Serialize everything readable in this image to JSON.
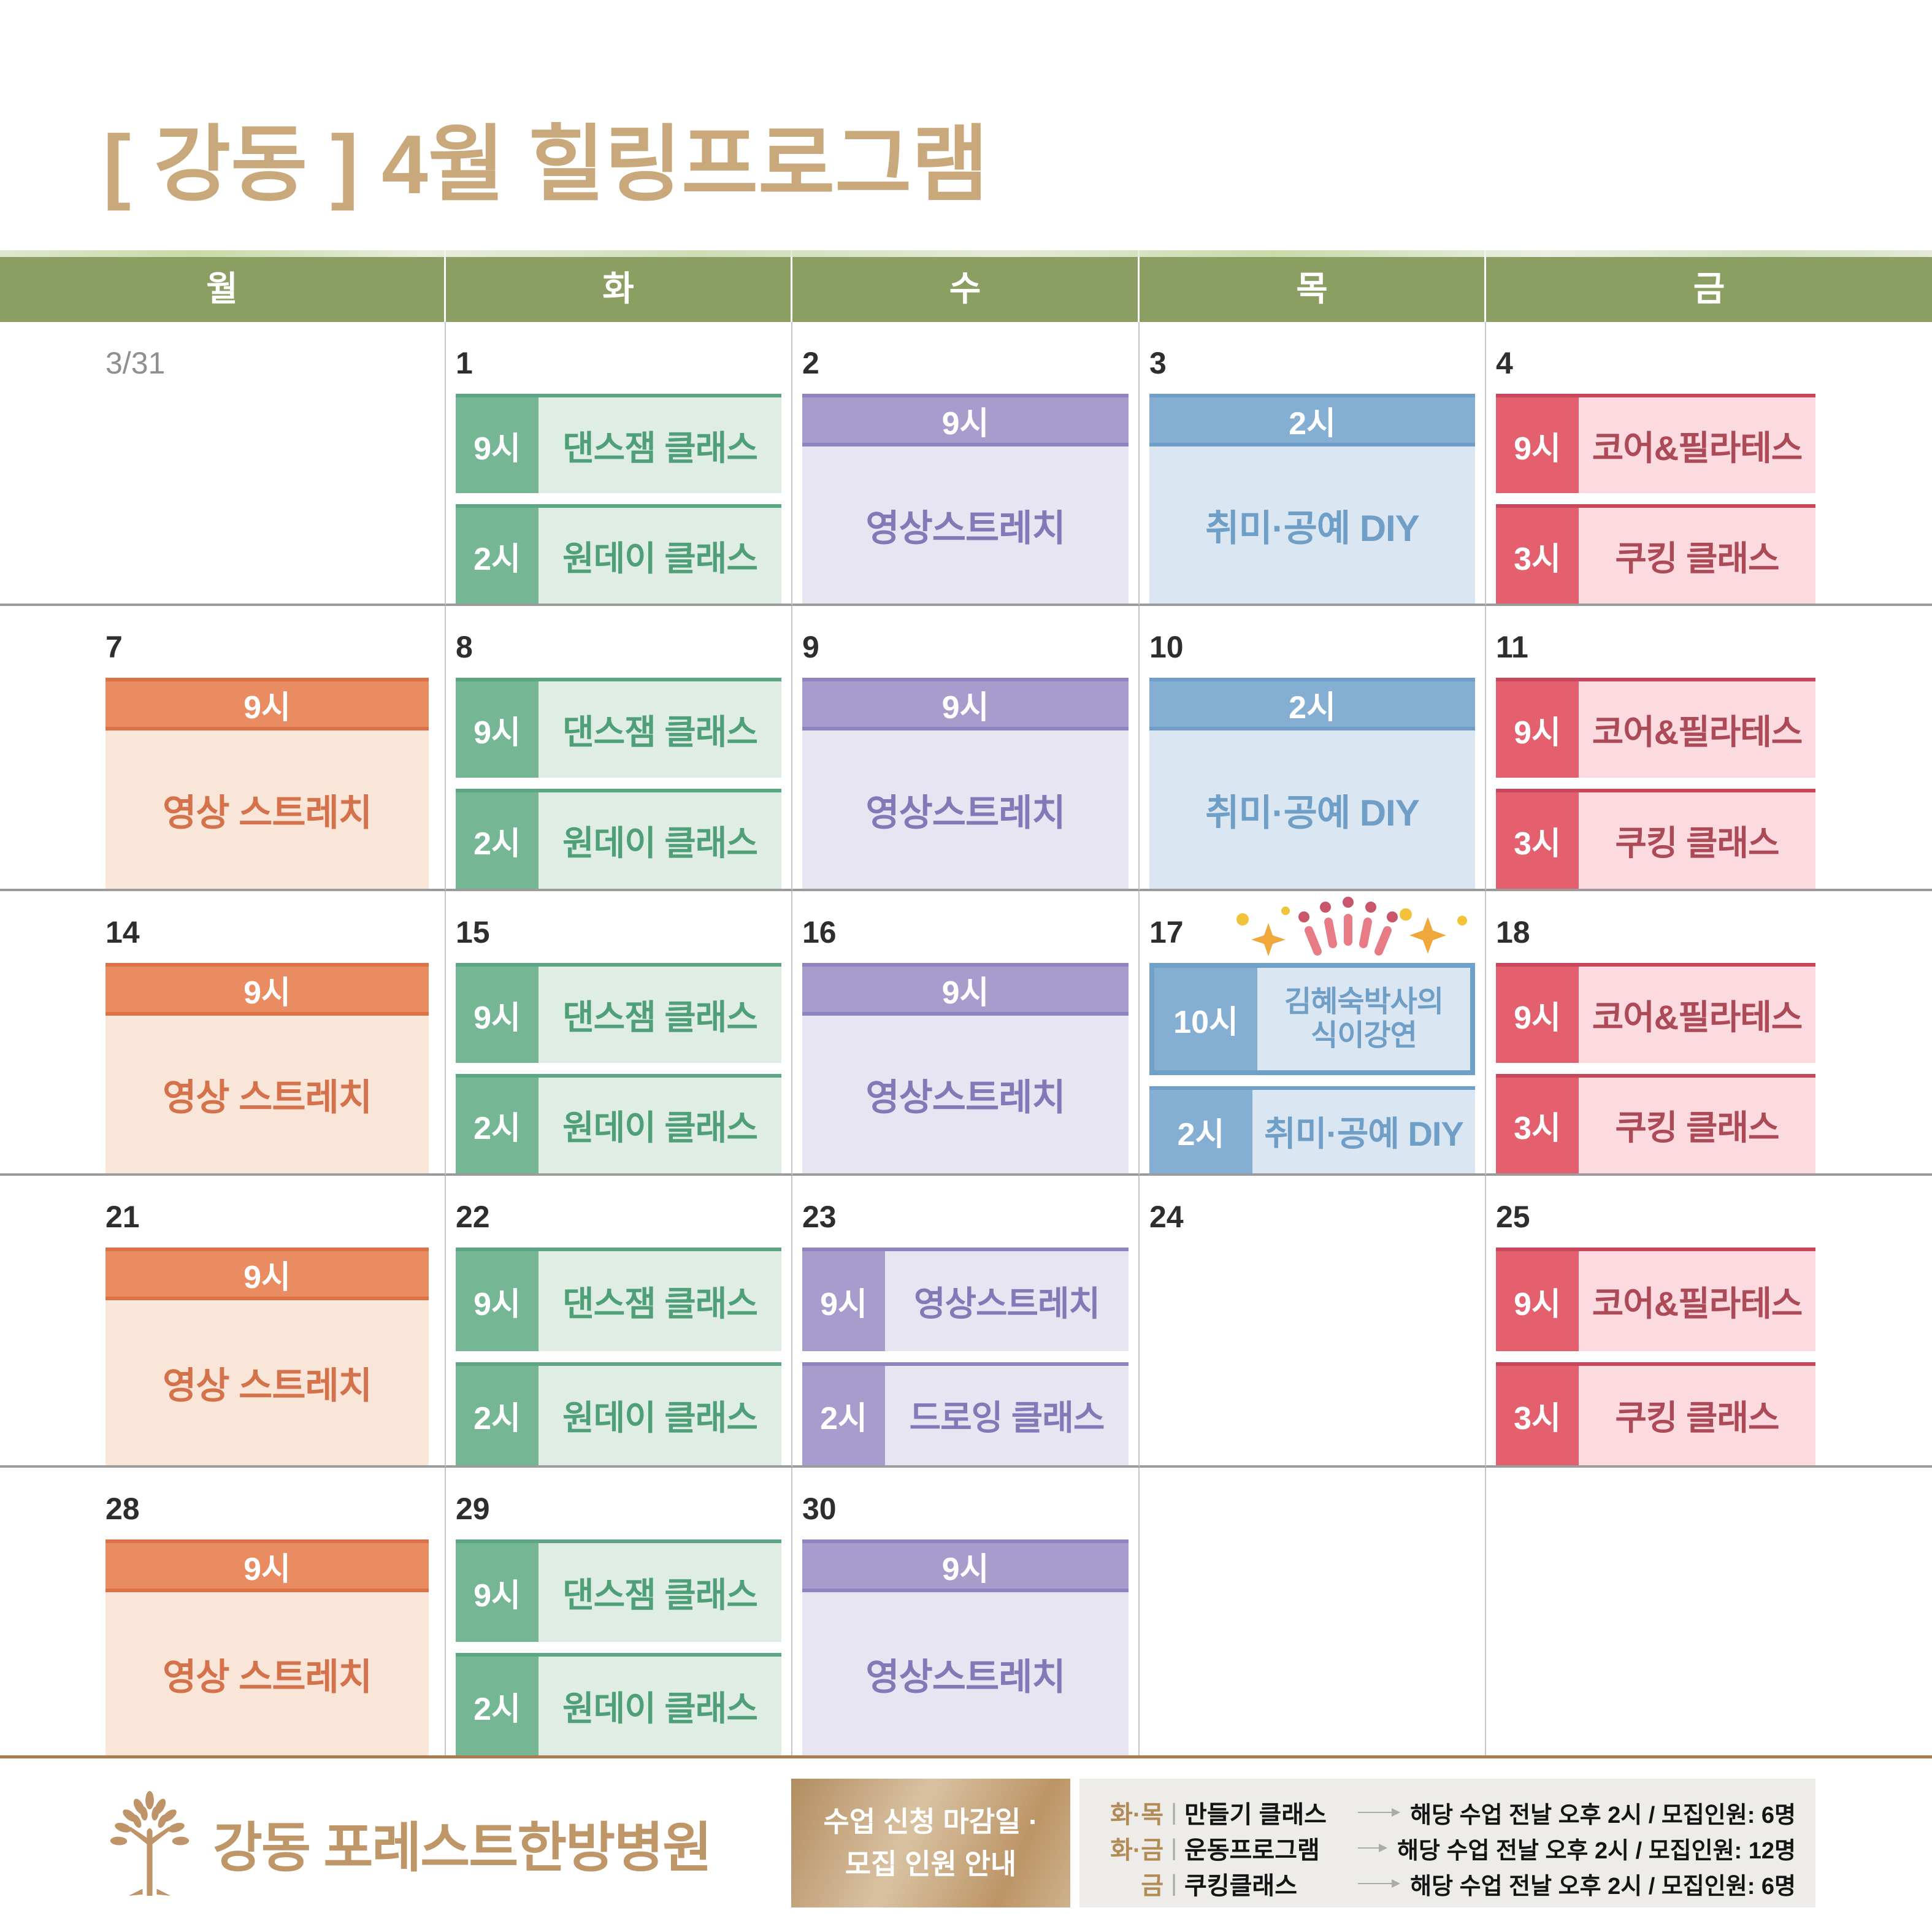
{
  "title": "[ 강동 ] 4월 힐링프로그램",
  "weekdays": [
    "월",
    "화",
    "수",
    "목",
    "금"
  ],
  "weeks": [
    [
      {
        "date": "3/31",
        "muted": true,
        "events": []
      },
      {
        "date": "1",
        "events": [
          {
            "type": "side",
            "theme": "green",
            "time": "9시",
            "label": "댄스잼 클래스"
          },
          {
            "type": "side",
            "theme": "green",
            "time": "2시",
            "label": "원데이 클래스"
          }
        ]
      },
      {
        "date": "2",
        "events": [
          {
            "type": "banner",
            "theme": "purple",
            "time": "9시",
            "label": "영상스트레치"
          }
        ]
      },
      {
        "date": "3",
        "events": [
          {
            "type": "banner",
            "theme": "blue",
            "time": "2시",
            "label": "취미·공예 DIY"
          }
        ]
      },
      {
        "date": "4",
        "events": [
          {
            "type": "side",
            "theme": "red",
            "time": "9시",
            "label": "코어&필라테스"
          },
          {
            "type": "side",
            "theme": "red",
            "time": "3시",
            "label": "쿠킹 클래스"
          }
        ]
      }
    ],
    [
      {
        "date": "7",
        "events": [
          {
            "type": "banner",
            "theme": "orange",
            "time": "9시",
            "label": "영상 스트레치"
          }
        ]
      },
      {
        "date": "8",
        "events": [
          {
            "type": "side",
            "theme": "green",
            "time": "9시",
            "label": "댄스잼 클래스"
          },
          {
            "type": "side",
            "theme": "green",
            "time": "2시",
            "label": "원데이 클래스"
          }
        ]
      },
      {
        "date": "9",
        "events": [
          {
            "type": "banner",
            "theme": "purple",
            "time": "9시",
            "label": "영상스트레치"
          }
        ]
      },
      {
        "date": "10",
        "events": [
          {
            "type": "banner",
            "theme": "blue",
            "time": "2시",
            "label": "취미·공예 DIY"
          }
        ]
      },
      {
        "date": "11",
        "events": [
          {
            "type": "side",
            "theme": "red",
            "time": "9시",
            "label": "코어&필라테스"
          },
          {
            "type": "side",
            "theme": "red",
            "time": "3시",
            "label": "쿠킹 클래스"
          }
        ]
      }
    ],
    [
      {
        "date": "14",
        "events": [
          {
            "type": "banner",
            "theme": "orange",
            "time": "9시",
            "label": "영상 스트레치"
          }
        ]
      },
      {
        "date": "15",
        "events": [
          {
            "type": "side",
            "theme": "green",
            "time": "9시",
            "label": "댄스잼 클래스"
          },
          {
            "type": "side",
            "theme": "green",
            "time": "2시",
            "label": "원데이 클래스"
          }
        ]
      },
      {
        "date": "16",
        "events": [
          {
            "type": "banner",
            "theme": "purple",
            "time": "9시",
            "label": "영상스트레치"
          }
        ]
      },
      {
        "date": "17",
        "decor": "sparkle",
        "events": [
          {
            "type": "side",
            "theme": "blue",
            "time": "10시",
            "label": "김혜숙박사의\n식이강연",
            "bordered": true
          },
          {
            "type": "side",
            "theme": "blue",
            "time": "2시",
            "label": "취미·공예 DIY"
          }
        ]
      },
      {
        "date": "18",
        "events": [
          {
            "type": "side",
            "theme": "red",
            "time": "9시",
            "label": "코어&필라테스"
          },
          {
            "type": "side",
            "theme": "red",
            "time": "3시",
            "label": "쿠킹 클래스"
          }
        ]
      }
    ],
    [
      {
        "date": "21",
        "events": [
          {
            "type": "banner",
            "theme": "orange",
            "time": "9시",
            "label": "영상 스트레치"
          }
        ]
      },
      {
        "date": "22",
        "events": [
          {
            "type": "side",
            "theme": "green",
            "time": "9시",
            "label": "댄스잼 클래스"
          },
          {
            "type": "side",
            "theme": "green",
            "time": "2시",
            "label": "원데이 클래스"
          }
        ]
      },
      {
        "date": "23",
        "events": [
          {
            "type": "side",
            "theme": "purple",
            "time": "9시",
            "label": "영상스트레치"
          },
          {
            "type": "side",
            "theme": "purple",
            "time": "2시",
            "label": "드로잉 클래스"
          }
        ]
      },
      {
        "date": "24",
        "events": []
      },
      {
        "date": "25",
        "events": [
          {
            "type": "side",
            "theme": "red",
            "time": "9시",
            "label": "코어&필라테스"
          },
          {
            "type": "side",
            "theme": "red",
            "time": "3시",
            "label": "쿠킹 클래스"
          }
        ]
      }
    ],
    [
      {
        "date": "28",
        "events": [
          {
            "type": "banner",
            "theme": "orange",
            "time": "9시",
            "label": "영상 스트레치"
          }
        ]
      },
      {
        "date": "29",
        "events": [
          {
            "type": "side",
            "theme": "green",
            "time": "9시",
            "label": "댄스잼 클래스"
          },
          {
            "type": "side",
            "theme": "green",
            "time": "2시",
            "label": "원데이 클래스"
          }
        ]
      },
      {
        "date": "30",
        "events": [
          {
            "type": "banner",
            "theme": "purple",
            "time": "9시",
            "label": "영상스트레치"
          }
        ]
      },
      {
        "date": "",
        "events": []
      },
      {
        "date": "",
        "events": []
      }
    ]
  ],
  "footer": {
    "hospital_name": "강동 포레스트한방병원",
    "notice_box": {
      "line1": "수업 신청 마감일 ·",
      "line2": "모집 인원 안내"
    },
    "legend_separator": "|",
    "legend": [
      {
        "days": "화·목",
        "program": "만들기 클래스",
        "desc": "해당 수업 전날 오후 2시 / 모집인원: 6명"
      },
      {
        "days": "화·금",
        "program": "운동프로그램",
        "desc": "해당 수업 전날 오후 2시 / 모집인원: 12명"
      },
      {
        "days": "금",
        "program": "쿠킹클래스",
        "desc": "해당 수업 전날 오후 2시 / 모집인원: 6명"
      }
    ]
  },
  "colors": {
    "title": "#C9A87B",
    "weekday_bar": "#8C9F63",
    "green": {
      "main": "#75B695",
      "light": "#DFEDE5",
      "text": "#4F9F79"
    },
    "orange": {
      "main": "#E98C61",
      "light": "#FAE6D8",
      "text": "#D4724C"
    },
    "purple": {
      "main": "#A89CCC",
      "light": "#E8E5F2",
      "text": "#8478B7"
    },
    "blue": {
      "main": "#84AED2",
      "light": "#DAE6F1",
      "text": "#6F9EC7"
    },
    "red": {
      "main": "#E4606E",
      "light": "#FBDBE0",
      "text": "#AC4A57"
    },
    "special_border": "#6FA0C8",
    "footer_rule": "#A87C50",
    "brand": "#BE9668"
  }
}
